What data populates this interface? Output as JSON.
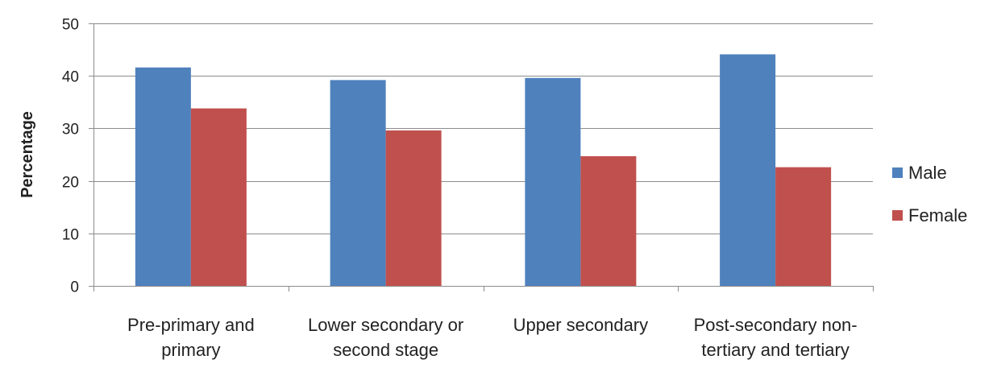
{
  "chart_data": {
    "type": "bar",
    "title": "",
    "xlabel": "",
    "ylabel": "Percentage",
    "ylim": [
      0,
      50
    ],
    "yticks": [
      0,
      10,
      20,
      30,
      40,
      50
    ],
    "grid": true,
    "legend_position": "right",
    "categories": [
      [
        "Pre-primary and",
        "primary"
      ],
      [
        "Lower secondary or",
        "second stage"
      ],
      [
        "Upper secondary"
      ],
      [
        "Post-secondary non-",
        "tertiary and tertiary"
      ]
    ],
    "series": [
      {
        "name": "Male",
        "color": "#4F81BD",
        "values": [
          41.6,
          39.2,
          39.6,
          44.1
        ]
      },
      {
        "name": "Female",
        "color": "#C0504D",
        "values": [
          33.8,
          29.6,
          24.7,
          22.6
        ]
      }
    ]
  }
}
